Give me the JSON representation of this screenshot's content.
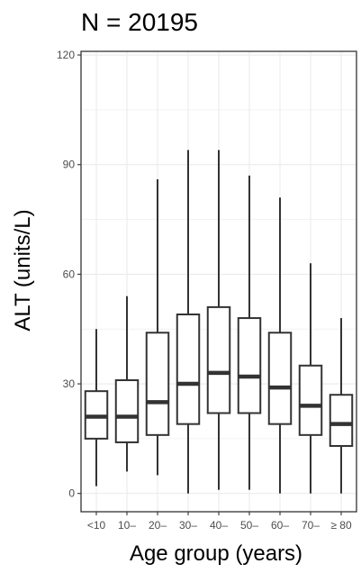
{
  "chart_data": {
    "type": "box",
    "title": "N = 20195",
    "xlabel": "Age group (years)",
    "ylabel": "ALT (units/L)",
    "ylim": [
      -5,
      121
    ],
    "yticks": [
      0,
      30,
      60,
      90,
      120
    ],
    "grid": true,
    "legend": "none",
    "categories": [
      "<10",
      "10–",
      "20–",
      "30–",
      "40–",
      "50–",
      "60–",
      "70–",
      "≥ 80"
    ],
    "boxes": [
      {
        "category": "<10",
        "whisker_low": 2,
        "q1": 15,
        "median": 21,
        "q3": 28,
        "whisker_high": 45
      },
      {
        "category": "10–",
        "whisker_low": 6,
        "q1": 14,
        "median": 21,
        "q3": 31,
        "whisker_high": 54
      },
      {
        "category": "20–",
        "whisker_low": 5,
        "q1": 16,
        "median": 25,
        "q3": 44,
        "whisker_high": 86
      },
      {
        "category": "30–",
        "whisker_low": 0,
        "q1": 19,
        "median": 30,
        "q3": 49,
        "whisker_high": 94
      },
      {
        "category": "40–",
        "whisker_low": 1,
        "q1": 22,
        "median": 33,
        "q3": 51,
        "whisker_high": 94
      },
      {
        "category": "50–",
        "whisker_low": 1,
        "q1": 22,
        "median": 32,
        "q3": 48,
        "whisker_high": 87
      },
      {
        "category": "60–",
        "whisker_low": 0,
        "q1": 19,
        "median": 29,
        "q3": 44,
        "whisker_high": 81
      },
      {
        "category": "70–",
        "whisker_low": 0,
        "q1": 16,
        "median": 24,
        "q3": 35,
        "whisker_high": 63
      },
      {
        "category": "≥ 80",
        "whisker_low": 0,
        "q1": 13,
        "median": 19,
        "q3": 27,
        "whisker_high": 48
      }
    ],
    "colors": {
      "box_stroke": "#333333",
      "grid": "#ebebeb",
      "panel_border": "#333333",
      "tick_text": "#4d4d4d"
    }
  }
}
